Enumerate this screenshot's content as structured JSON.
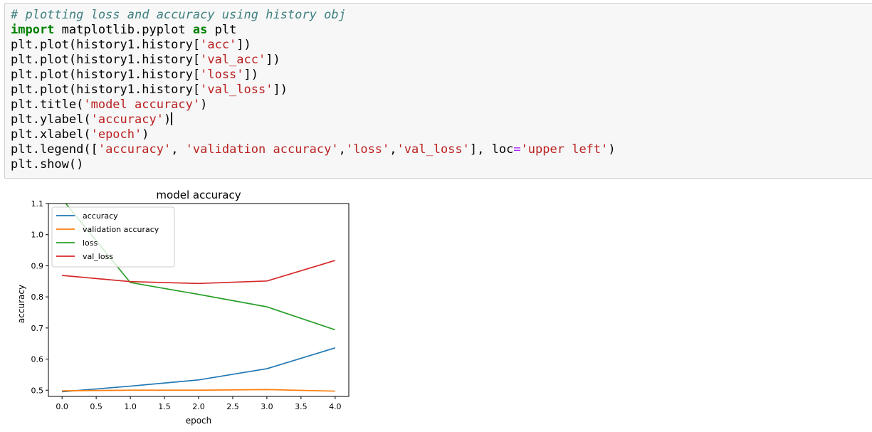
{
  "code_cell": {
    "lines": [
      [
        {
          "t": "# plotting loss and accuracy using history obj",
          "c": "comment"
        }
      ],
      [
        {
          "t": "import",
          "c": "kw"
        },
        {
          "t": " matplotlib.pyplot ",
          "c": ""
        },
        {
          "t": "as",
          "c": "kw"
        },
        {
          "t": " plt",
          "c": ""
        }
      ],
      [
        {
          "t": "plt.plot(history1.history[",
          "c": ""
        },
        {
          "t": "'acc'",
          "c": "str"
        },
        {
          "t": "])",
          "c": ""
        }
      ],
      [
        {
          "t": "plt.plot(history1.history[",
          "c": ""
        },
        {
          "t": "'val_acc'",
          "c": "str"
        },
        {
          "t": "])",
          "c": ""
        }
      ],
      [
        {
          "t": "plt.plot(history1.history[",
          "c": ""
        },
        {
          "t": "'loss'",
          "c": "str"
        },
        {
          "t": "])",
          "c": ""
        }
      ],
      [
        {
          "t": "plt.plot(history1.history[",
          "c": ""
        },
        {
          "t": "'val_loss'",
          "c": "str"
        },
        {
          "t": "])",
          "c": ""
        }
      ],
      [
        {
          "t": "plt.title(",
          "c": ""
        },
        {
          "t": "'model accuracy'",
          "c": "str"
        },
        {
          "t": ")",
          "c": ""
        }
      ],
      [
        {
          "t": "plt.ylabel(",
          "c": ""
        },
        {
          "t": "'accuracy'",
          "c": "str"
        },
        {
          "t": ")",
          "c": ""
        },
        {
          "t": "",
          "c": "cursor"
        }
      ],
      [
        {
          "t": "plt.xlabel(",
          "c": ""
        },
        {
          "t": "'epoch'",
          "c": "str"
        },
        {
          "t": ")",
          "c": ""
        }
      ],
      [
        {
          "t": "plt.legend([",
          "c": ""
        },
        {
          "t": "'accuracy'",
          "c": "str"
        },
        {
          "t": ", ",
          "c": ""
        },
        {
          "t": "'validation accuracy'",
          "c": "str"
        },
        {
          "t": ",",
          "c": ""
        },
        {
          "t": "'loss'",
          "c": "str"
        },
        {
          "t": ",",
          "c": ""
        },
        {
          "t": "'val_loss'",
          "c": "str"
        },
        {
          "t": "], loc",
          "c": ""
        },
        {
          "t": "=",
          "c": "op"
        },
        {
          "t": "'upper left'",
          "c": "str"
        },
        {
          "t": ")",
          "c": ""
        }
      ],
      [
        {
          "t": "plt.show()",
          "c": ""
        }
      ]
    ]
  },
  "chart_data": {
    "type": "line",
    "title": "model accuracy",
    "xlabel": "epoch",
    "ylabel": "accuracy",
    "xlim": [
      -0.2,
      4.2
    ],
    "ylim": [
      0.48,
      1.1
    ],
    "xticks": [
      0,
      0.5,
      1,
      1.5,
      2,
      2.5,
      3,
      3.5,
      4
    ],
    "xtick_labels": [
      "0.0",
      "0.5",
      "1.0",
      "1.5",
      "2.0",
      "2.5",
      "3.0",
      "3.5",
      "4.0"
    ],
    "yticks": [
      0.5,
      0.6,
      0.7,
      0.8,
      0.9,
      1.0,
      1.1
    ],
    "ytick_labels": [
      "0.5",
      "0.6",
      "0.7",
      "0.8",
      "0.9",
      "1.0",
      "1.1"
    ],
    "grid": false,
    "legend_position": "upper left",
    "x": [
      0,
      1,
      2,
      3,
      4
    ],
    "series": [
      {
        "name": "accuracy",
        "color": "#1f77b4",
        "values": [
          0.495,
          0.513,
          0.533,
          0.569,
          0.636
        ]
      },
      {
        "name": "validation accuracy",
        "color": "#ff7f0e",
        "values": [
          0.498,
          0.5,
          0.5,
          0.502,
          0.497
        ]
      },
      {
        "name": "loss",
        "color": "#2ca02c",
        "values": [
          1.115,
          0.846,
          0.808,
          0.768,
          0.694
        ]
      },
      {
        "name": "val_loss",
        "color": "#d62728",
        "values": [
          0.869,
          0.849,
          0.843,
          0.851,
          0.917
        ]
      }
    ]
  }
}
